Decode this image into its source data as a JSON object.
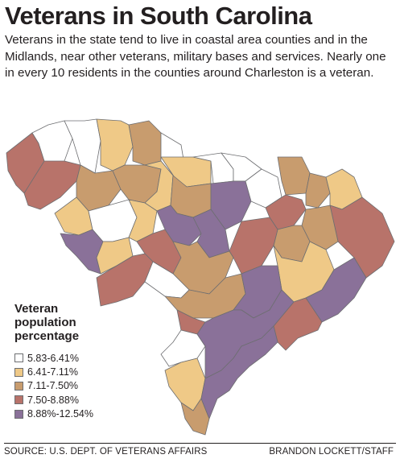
{
  "title": "Veterans in South Carolina",
  "dek": "Veterans in the state tend to live in coastal area counties and in the Midlands, near other veterans, military bases and services. Nearly one in every 10 residents in the counties around Charleston is a veteran.",
  "legend": {
    "title": "Veteran population percentage",
    "classes": [
      {
        "label": "5.83-6.41%",
        "color": "#ffffff"
      },
      {
        "label": "6.41-7.11%",
        "color": "#efc987"
      },
      {
        "label": "7.11-7.50%",
        "color": "#c89c6e"
      },
      {
        "label": "7.50-8.88%",
        "color": "#b8736a"
      },
      {
        "label": "8.88%-12.54%",
        "color": "#8a7199"
      }
    ]
  },
  "map": {
    "region": "South Carolina counties",
    "counties": [
      {
        "class": 3
      },
      {
        "class": 0
      },
      {
        "class": 0
      },
      {
        "class": 1
      },
      {
        "class": 2
      },
      {
        "class": 0
      },
      {
        "class": 1
      },
      {
        "class": 0
      },
      {
        "class": 0
      },
      {
        "class": 2
      },
      {
        "class": 3
      },
      {
        "class": 2
      },
      {
        "class": 2
      },
      {
        "class": 1
      },
      {
        "class": 2
      },
      {
        "class": 4
      },
      {
        "class": 0
      },
      {
        "class": 2
      },
      {
        "class": 3
      },
      {
        "class": 1
      },
      {
        "class": 1
      },
      {
        "class": 4
      },
      {
        "class": 0
      },
      {
        "class": 1
      },
      {
        "class": 4
      },
      {
        "class": 4
      },
      {
        "class": 1
      },
      {
        "class": 3
      },
      {
        "class": 3
      },
      {
        "class": 2
      },
      {
        "class": 2
      },
      {
        "class": 3
      },
      {
        "class": 1
      },
      {
        "class": 2
      },
      {
        "class": 3
      },
      {
        "class": 0
      },
      {
        "class": 2
      },
      {
        "class": 3
      },
      {
        "class": 4
      },
      {
        "class": 4
      },
      {
        "class": 3
      },
      {
        "class": 0
      },
      {
        "class": 1
      },
      {
        "class": 2
      },
      {
        "class": 4
      },
      {
        "class": 4
      }
    ]
  },
  "footer": {
    "source": "SOURCE: U.S. DEPT. OF VETERANS AFFAIRS",
    "credit": "BRANDON LOCKETT/STAFF"
  }
}
